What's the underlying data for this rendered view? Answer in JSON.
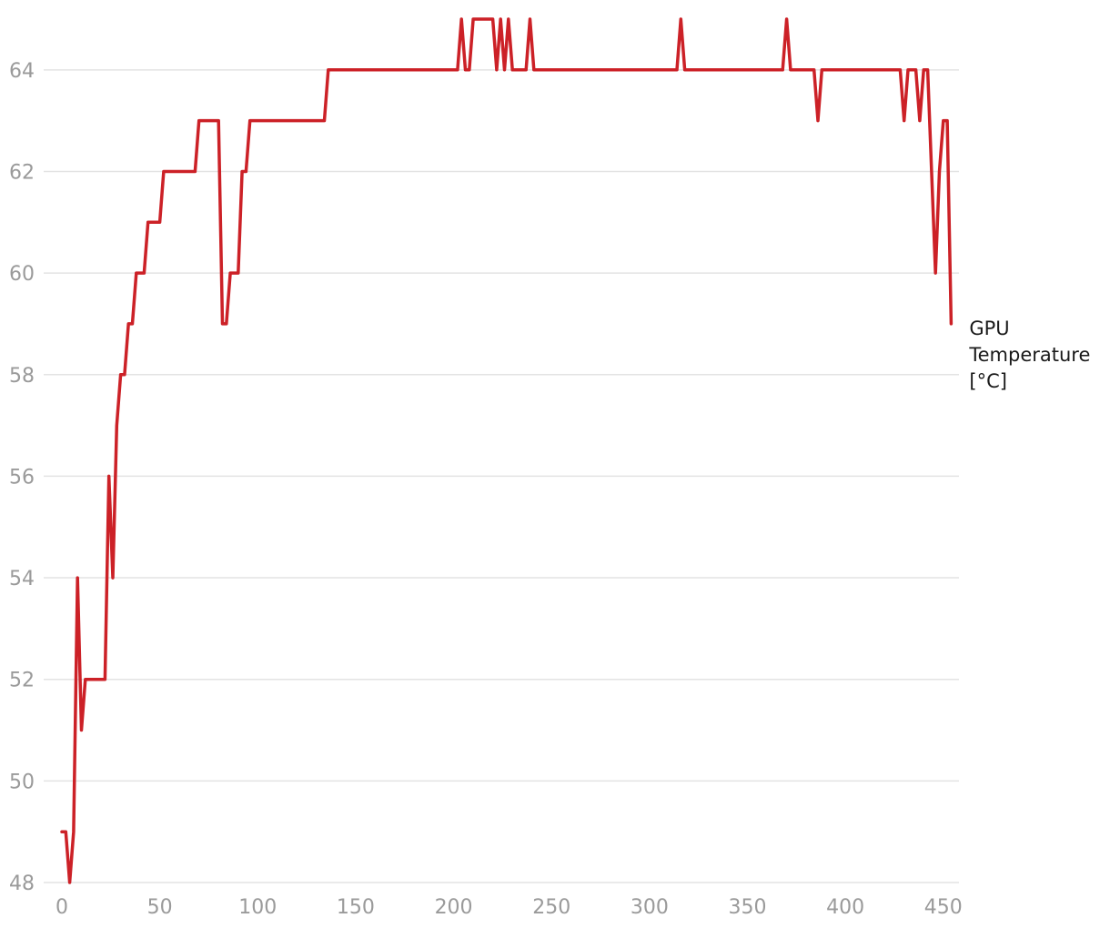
{
  "chart_data": {
    "type": "line",
    "xlim": [
      0,
      458
    ],
    "ylim": [
      48,
      65
    ],
    "x_ticks": [
      0,
      50,
      100,
      150,
      200,
      250,
      300,
      350,
      400,
      450
    ],
    "y_ticks": [
      48,
      50,
      52,
      54,
      56,
      58,
      60,
      62,
      64
    ],
    "grid": "horizontal",
    "series": [
      {
        "name": "GPU Temperature [°C]",
        "name_lines": [
          "GPU",
          "Temperature",
          "[°C]"
        ],
        "color": "#cc2127",
        "points": [
          [
            0,
            49
          ],
          [
            2,
            49
          ],
          [
            4,
            48
          ],
          [
            6,
            49
          ],
          [
            8,
            54
          ],
          [
            10,
            51
          ],
          [
            12,
            52
          ],
          [
            14,
            52
          ],
          [
            22,
            52
          ],
          [
            24,
            56
          ],
          [
            26,
            54
          ],
          [
            28,
            57
          ],
          [
            30,
            58
          ],
          [
            32,
            58
          ],
          [
            34,
            59
          ],
          [
            36,
            59
          ],
          [
            38,
            60
          ],
          [
            42,
            60
          ],
          [
            44,
            61
          ],
          [
            50,
            61
          ],
          [
            52,
            62
          ],
          [
            68,
            62
          ],
          [
            70,
            63
          ],
          [
            80,
            63
          ],
          [
            82,
            59
          ],
          [
            84,
            59
          ],
          [
            86,
            60
          ],
          [
            90,
            60
          ],
          [
            92,
            62
          ],
          [
            94,
            62
          ],
          [
            96,
            63
          ],
          [
            134,
            63
          ],
          [
            136,
            64
          ],
          [
            202,
            64
          ],
          [
            204,
            65
          ],
          [
            206,
            64
          ],
          [
            208,
            64
          ],
          [
            210,
            65
          ],
          [
            220,
            65
          ],
          [
            222,
            64
          ],
          [
            224,
            65
          ],
          [
            226,
            64
          ],
          [
            228,
            65
          ],
          [
            230,
            64
          ],
          [
            237,
            64
          ],
          [
            239,
            65
          ],
          [
            241,
            64
          ],
          [
            314,
            64
          ],
          [
            316,
            65
          ],
          [
            318,
            64
          ],
          [
            368,
            64
          ],
          [
            370,
            65
          ],
          [
            372,
            64
          ],
          [
            384,
            64
          ],
          [
            386,
            63
          ],
          [
            388,
            64
          ],
          [
            428,
            64
          ],
          [
            430,
            63
          ],
          [
            432,
            64
          ],
          [
            436,
            64
          ],
          [
            438,
            63
          ],
          [
            440,
            64
          ],
          [
            442,
            64
          ],
          [
            444,
            62
          ],
          [
            446,
            60
          ],
          [
            448,
            62
          ],
          [
            450,
            63
          ],
          [
            452,
            63
          ],
          [
            454,
            59
          ]
        ]
      }
    ]
  }
}
